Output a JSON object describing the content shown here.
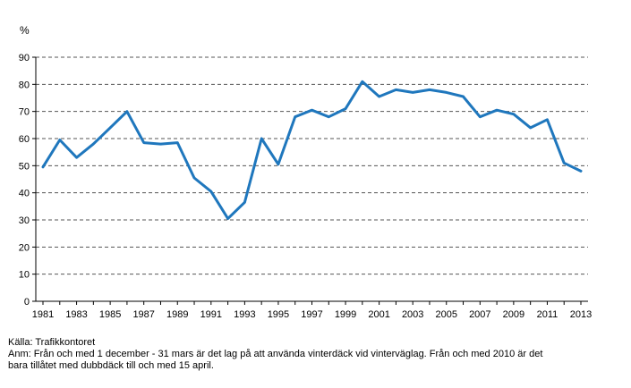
{
  "chart_data": {
    "type": "line",
    "ylabel": "%",
    "xlabel": "",
    "title": "",
    "ylim": [
      0,
      90
    ],
    "yticks": [
      "0",
      "10",
      "20",
      "30",
      "40",
      "50",
      "60",
      "70",
      "80",
      "90"
    ],
    "xlim": [
      1981,
      2013
    ],
    "xticks": [
      "1981",
      "1983",
      "1985",
      "1987",
      "1989",
      "1991",
      "1993",
      "1995",
      "1997",
      "1999",
      "2001",
      "2003",
      "2005",
      "2007",
      "2009",
      "2011",
      "2013"
    ],
    "grid": "horizontal dashed",
    "series": [
      {
        "color": "#1f77bd",
        "x": [
          1981,
          1982,
          1983,
          1984,
          1985,
          1986,
          1987,
          1988,
          1989,
          1990,
          1991,
          1992,
          1993,
          1994,
          1995,
          1996,
          1997,
          1998,
          1999,
          2000,
          2001,
          2002,
          2003,
          2004,
          2005,
          2006,
          2007,
          2008,
          2009,
          2010,
          2011,
          2012,
          2013
        ],
        "values": [
          49.5,
          59.5,
          53,
          58,
          64,
          70,
          58.5,
          58,
          58.5,
          45.5,
          40.5,
          30.5,
          36.5,
          60,
          50.5,
          68,
          70.5,
          68,
          71,
          81,
          75.5,
          78,
          77,
          78,
          77,
          75.5,
          68,
          70.5,
          69,
          64,
          67,
          51,
          48
        ]
      }
    ]
  },
  "notes": {
    "source": "Källa:  Trafikkontoret",
    "remark_line1": "Anm: Från och med 1 december - 31 mars är det lag på att använda vinterdäck vid vinterväglag. Från och med 2010 är det",
    "remark_line2": "bara tillåtet med dubbdäck till och med 15 april."
  }
}
